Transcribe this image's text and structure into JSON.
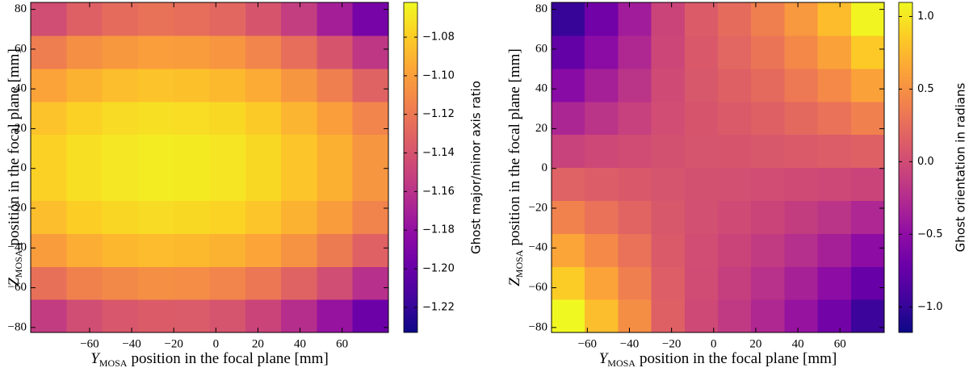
{
  "chart_data": [
    {
      "type": "heatmap",
      "colormap": "plasma",
      "x": [
        -79.5,
        -62.5,
        -45.5,
        -28.5,
        -11.5,
        5.5,
        22.5,
        39.5,
        56.5,
        73.5
      ],
      "y": [
        -74.2,
        -57.6,
        -41,
        -24.4,
        -7.8,
        8.8,
        25.4,
        42,
        58.6,
        75.2
      ],
      "z": [
        [
          -1.154,
          -1.144,
          -1.138,
          -1.135,
          -1.136,
          -1.14,
          -1.149,
          -1.162,
          -1.178,
          -1.198
        ],
        [
          -1.124,
          -1.115,
          -1.111,
          -1.108,
          -1.109,
          -1.113,
          -1.12,
          -1.131,
          -1.144,
          -1.161
        ],
        [
          -1.101,
          -1.093,
          -1.089,
          -1.087,
          -1.088,
          -1.091,
          -1.097,
          -1.106,
          -1.118,
          -1.132
        ],
        [
          -1.086,
          -1.079,
          -1.076,
          -1.074,
          -1.075,
          -1.077,
          -1.083,
          -1.091,
          -1.101,
          -1.114
        ],
        [
          -1.078,
          -1.072,
          -1.069,
          -1.067,
          -1.068,
          -1.07,
          -1.075,
          -1.083,
          -1.092,
          -1.104
        ],
        [
          -1.078,
          -1.072,
          -1.069,
          -1.067,
          -1.068,
          -1.07,
          -1.075,
          -1.083,
          -1.092,
          -1.104
        ],
        [
          -1.084,
          -1.078,
          -1.074,
          -1.072,
          -1.073,
          -1.075,
          -1.081,
          -1.09,
          -1.1,
          -1.113
        ],
        [
          -1.098,
          -1.091,
          -1.086,
          -1.084,
          -1.085,
          -1.088,
          -1.094,
          -1.104,
          -1.116,
          -1.131
        ],
        [
          -1.117,
          -1.108,
          -1.103,
          -1.1,
          -1.101,
          -1.105,
          -1.113,
          -1.125,
          -1.139,
          -1.157
        ],
        [
          -1.144,
          -1.133,
          -1.126,
          -1.123,
          -1.125,
          -1.129,
          -1.139,
          -1.153,
          -1.171,
          -1.193
        ]
      ],
      "xlim": [
        -88,
        82
      ],
      "ylim": [
        -82.5,
        83.5
      ],
      "xticks": [
        {
          "value": -60,
          "label": "−60"
        },
        {
          "value": -40,
          "label": "−40"
        },
        {
          "value": -20,
          "label": "−20"
        },
        0,
        20,
        40,
        60
      ],
      "yticks": [
        {
          "value": -80,
          "label": "−80"
        },
        {
          "value": -60,
          "label": "−60"
        },
        {
          "value": -40,
          "label": "−40"
        },
        {
          "value": -20,
          "label": "−20"
        },
        0,
        20,
        40,
        60,
        80
      ],
      "x_label": {
        "symbol": "Y",
        "subscript": "MOSA",
        "text": "position in the focal plane [mm]"
      },
      "y_label": {
        "symbol": "Z",
        "subscript": "MOSA",
        "text": "position in the focal plane [mm]"
      },
      "colorbar": {
        "label": "Ghost major/minor axis ratio",
        "clim": [
          -1.233,
          -1.062
        ],
        "ticks": [
          {
            "value": -1.22,
            "label": "−1.22"
          },
          {
            "value": -1.2,
            "label": "−1.20"
          },
          {
            "value": -1.18,
            "label": "−1.18"
          },
          {
            "value": -1.16,
            "label": "−1.16"
          },
          {
            "value": -1.14,
            "label": "−1.14"
          },
          {
            "value": -1.12,
            "label": "−1.12"
          },
          {
            "value": -1.1,
            "label": "−1.10"
          },
          {
            "value": -1.08,
            "label": "−1.08"
          }
        ]
      }
    },
    {
      "type": "heatmap",
      "colormap": "plasma",
      "x": [
        -69.1,
        -53.3,
        -37.5,
        -21.7,
        -5.9,
        9.9,
        25.7,
        41.5,
        57.3,
        73.1
      ],
      "y": [
        -74.2,
        -57.6,
        -41,
        -24.4,
        -7.8,
        8.8,
        25.4,
        42,
        58.6,
        75.2
      ],
      "z": [
        [
          1.09,
          0.78,
          0.48,
          0.16,
          -0.02,
          -0.14,
          -0.28,
          -0.45,
          -0.67,
          -0.97
        ],
        [
          0.86,
          0.62,
          0.38,
          0.14,
          0.0,
          -0.1,
          -0.21,
          -0.34,
          -0.51,
          -0.74
        ],
        [
          0.63,
          0.45,
          0.29,
          0.11,
          0.01,
          -0.06,
          -0.13,
          -0.23,
          -0.35,
          -0.51
        ],
        [
          0.4,
          0.29,
          0.19,
          0.09,
          0.03,
          -0.01,
          -0.06,
          -0.12,
          -0.19,
          -0.29
        ],
        [
          0.17,
          0.13,
          0.1,
          0.06,
          0.04,
          0.03,
          0.01,
          -0.01,
          -0.03,
          -0.06
        ],
        [
          -0.07,
          -0.03,
          0.0,
          0.04,
          0.06,
          0.07,
          0.09,
          0.11,
          0.13,
          0.16
        ],
        [
          -0.3,
          -0.19,
          -0.09,
          0.01,
          0.07,
          0.11,
          0.16,
          0.22,
          0.29,
          0.39
        ],
        [
          -0.53,
          -0.35,
          -0.19,
          -0.01,
          0.09,
          0.16,
          0.23,
          0.33,
          0.45,
          0.61
        ],
        [
          -0.76,
          -0.52,
          -0.28,
          -0.04,
          0.1,
          0.2,
          0.31,
          0.44,
          0.61,
          0.84
        ],
        [
          -0.99,
          -0.68,
          -0.38,
          -0.06,
          0.12,
          0.24,
          0.38,
          0.55,
          0.77,
          1.07
        ]
      ],
      "xlim": [
        -77,
        81
      ],
      "ylim": [
        -82.5,
        83.5
      ],
      "xticks": [
        {
          "value": -60,
          "label": "−60"
        },
        {
          "value": -40,
          "label": "−40"
        },
        {
          "value": -20,
          "label": "−20"
        },
        0,
        20,
        40,
        60
      ],
      "yticks": [
        {
          "value": -80,
          "label": "−80"
        },
        {
          "value": -60,
          "label": "−60"
        },
        {
          "value": -40,
          "label": "−40"
        },
        {
          "value": -20,
          "label": "−20"
        },
        0,
        20,
        40,
        60,
        80
      ],
      "x_label": {
        "symbol": "Y",
        "subscript": "MOSA",
        "text": "position in the focal plane [mm]"
      },
      "y_label": {
        "symbol": "Z",
        "subscript": "MOSA",
        "text": "position in the focal plane [mm]"
      },
      "colorbar": {
        "label": "Ghost orientation in radians",
        "clim": [
          -1.176,
          1.097
        ],
        "ticks": [
          {
            "value": -1,
            "label": "−1.0"
          },
          {
            "value": -0.5,
            "label": "−0.5"
          },
          {
            "value": 0,
            "label": "0.0"
          },
          0.5,
          {
            "value": 1,
            "label": "1.0"
          }
        ]
      }
    }
  ]
}
